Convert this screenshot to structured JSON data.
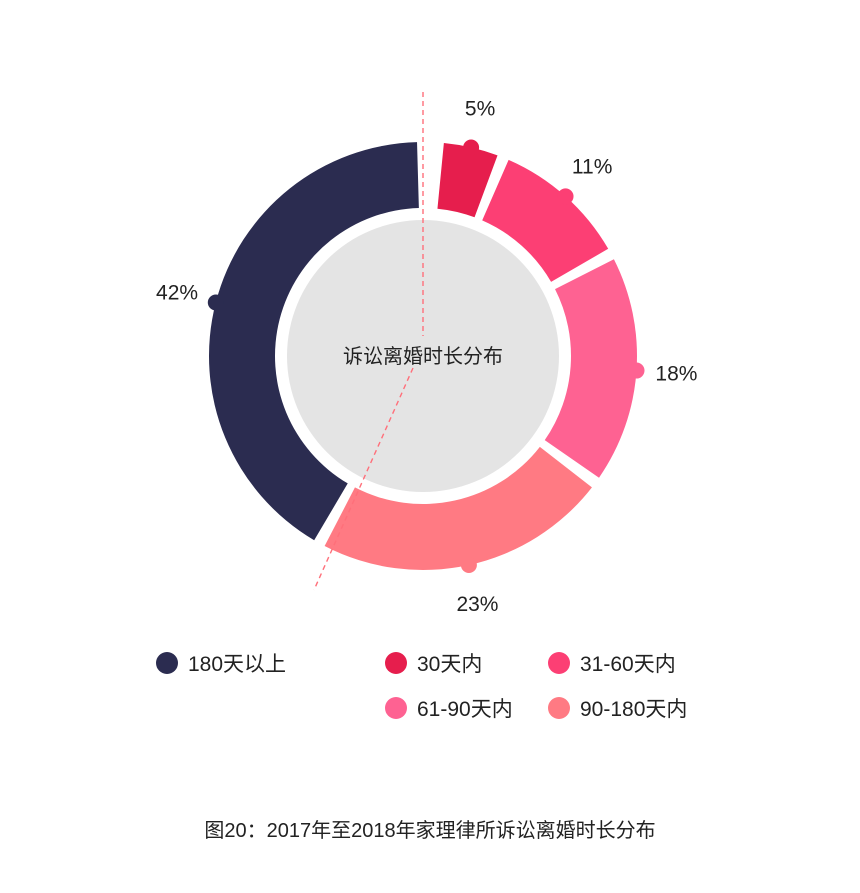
{
  "chart_data": {
    "type": "pie",
    "title": "",
    "center_label": "诉讼离婚时长分布",
    "categories": [
      "30天内",
      "31-60天内",
      "61-90天内",
      "90-180天内",
      "180天以上"
    ],
    "values": [
      5,
      11,
      18,
      23,
      42
    ],
    "labels": [
      "5%",
      "11%",
      "18%",
      "23%",
      "42%"
    ],
    "colors": [
      "#e61e4d",
      "#fc3f74",
      "#fe6292",
      "#ff7a83",
      "#2b2c50"
    ],
    "donut": true
  },
  "legend": [
    {
      "label": "180天以上",
      "color": "#2b2c50"
    },
    {
      "label": "30天内",
      "color": "#e61e4d"
    },
    {
      "label": "31-60天内",
      "color": "#fc3f74"
    },
    {
      "label": "61-90天内",
      "color": "#fe6292"
    },
    {
      "label": "90-180天内",
      "color": "#ff7a83"
    }
  ],
  "caption": "图20：2017年至2018年家理律所诉讼离婚时长分布"
}
